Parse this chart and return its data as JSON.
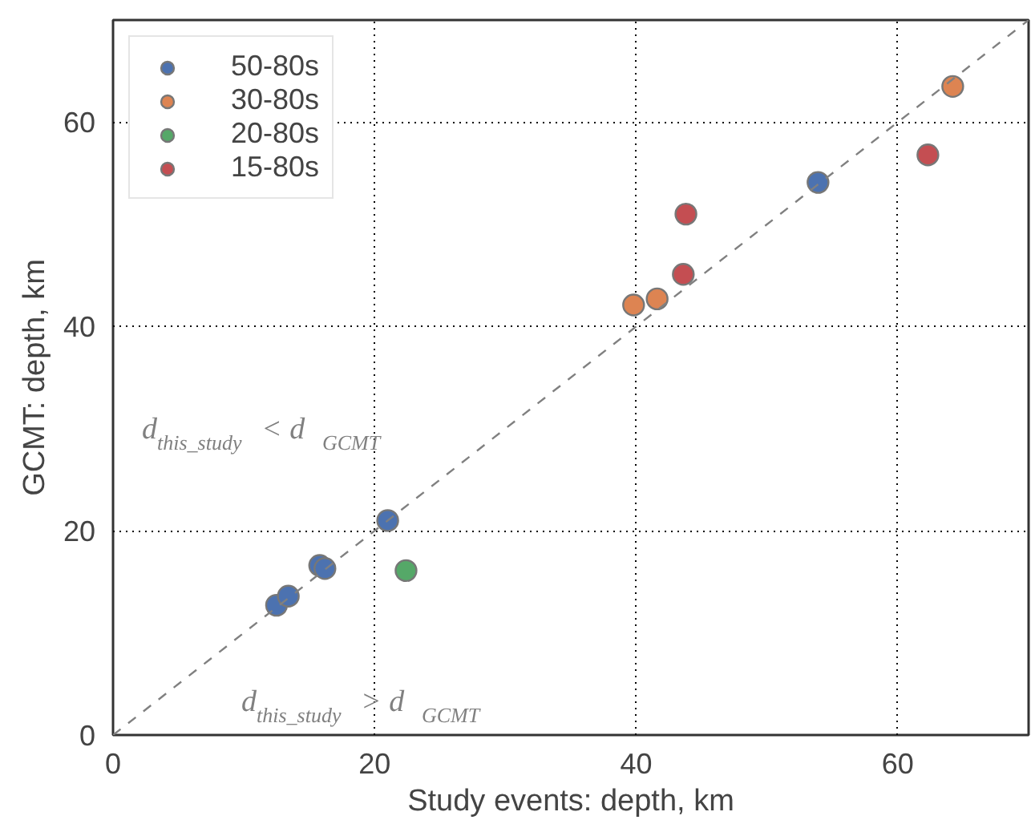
{
  "chart_data": {
    "type": "scatter",
    "xlabel": "Study events: depth, km",
    "ylabel": "GCMT: depth, km",
    "xlim": [
      0,
      70
    ],
    "ylim": [
      0,
      70
    ],
    "xticks": [
      0,
      20,
      40,
      60
    ],
    "yticks": [
      0,
      20,
      40,
      60
    ],
    "grid": true,
    "legend": "top left",
    "marker": "circle",
    "series": [
      {
        "name": "50-80s",
        "color": "#4c72b0",
        "x": [
          12.5,
          13.4,
          15.8,
          16.2,
          21.0,
          53.9
        ],
        "values": [
          12.7,
          13.6,
          16.6,
          16.3,
          21.0,
          54.1
        ]
      },
      {
        "name": "30-80s",
        "color": "#dd8452",
        "x": [
          39.8,
          41.6,
          64.2
        ],
        "values": [
          42.1,
          42.7,
          63.5
        ]
      },
      {
        "name": "20-80s",
        "color": "#55a868",
        "x": [
          22.4
        ],
        "values": [
          16.1
        ]
      },
      {
        "name": "15-80s",
        "color": "#c44e52",
        "x": [
          43.8,
          43.6,
          62.3
        ],
        "values": [
          51.0,
          45.1,
          56.8
        ]
      },
      {
        "type": "line",
        "color": "#808080",
        "line_style": "dashed",
        "marker": "none",
        "x": [
          0,
          70
        ],
        "values": [
          0,
          70
        ]
      }
    ],
    "annotations": [
      "d$_{this_study}$ < d$_{GCMT}$",
      "d$_{this_study}$ > d$_{GCMT}$"
    ]
  }
}
